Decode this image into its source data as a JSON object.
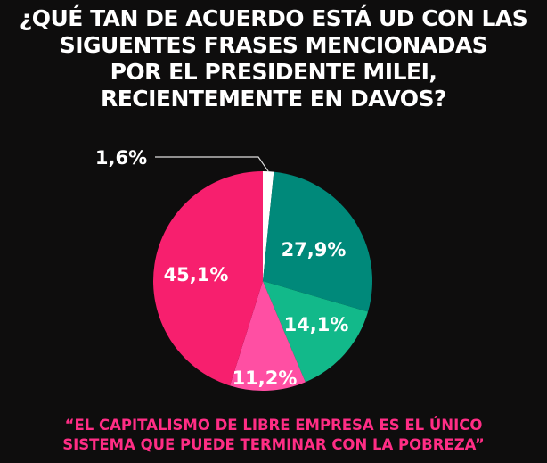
{
  "title_lines": [
    "¿QUÉ TAN DE ACUERDO ESTÁ UD CON LAS",
    "SIGUENTES FRASES MENCIONADAS",
    "POR EL PRESIDENTE MILEI,",
    "RECIENTEMENTE EN DAVOS?"
  ],
  "caption_lines": [
    "“EL CAPITALISMO DE LIBRE EMPRESA ES EL ÚNICO",
    "SISTEMA QUE PUEDE TERMINAR CON LA POBREZA”"
  ],
  "chart_data": {
    "type": "pie",
    "title": "¿QUÉ TAN DE ACUERDO ESTÁ UD CON LAS SIGUENTES FRASES MENCIONADAS POR EL PRESIDENTE MILEI, RECIENTEMENTE EN DAVOS?",
    "start": "top, clockwise",
    "slices": [
      {
        "value": 1.6,
        "label": "1,6%",
        "color": "#ffffff"
      },
      {
        "value": 27.9,
        "label": "27,9%",
        "color": "#00897a"
      },
      {
        "value": 14.1,
        "label": "14,1%",
        "color": "#12b98a"
      },
      {
        "value": 11.2,
        "label": "11,2%",
        "color": "#ff4fa3"
      },
      {
        "value": 45.1,
        "label": "45,1%",
        "color": "#f71f6e"
      }
    ]
  }
}
